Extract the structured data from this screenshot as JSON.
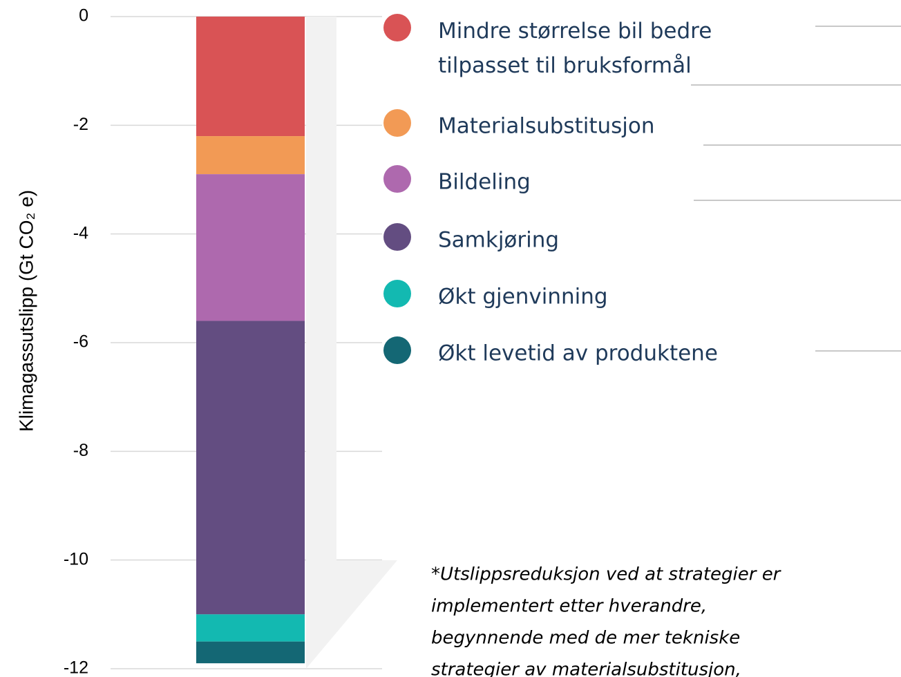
{
  "chart_data": {
    "type": "stacked_bar",
    "y_label": "Klimagassutslipp (Gt CO₂ e)",
    "ylim": [
      -12,
      0
    ],
    "yticks": [
      0,
      -2,
      -4,
      -6,
      -8,
      -10,
      -12
    ],
    "grid": true,
    "series": [
      {
        "name": "Mindre størrelse bil bedre tilpasset til bruksformål",
        "color": "#d95355",
        "values": [
          -2.2
        ]
      },
      {
        "name": "Materialsubstitusjon",
        "color": "#f29a55",
        "values": [
          -0.7
        ]
      },
      {
        "name": "Bildeling",
        "color": "#ae69ae",
        "values": [
          -2.7
        ]
      },
      {
        "name": "Samkjøring",
        "color": "#634d81",
        "values": [
          -5.4
        ]
      },
      {
        "name": "Økt gjenvinning",
        "color": "#13b9b1",
        "values": [
          -0.5
        ]
      },
      {
        "name": "Økt levetid av produktene",
        "color": "#146774",
        "values": [
          -0.4
        ]
      }
    ],
    "note_lines": [
      "*Utslippsreduksjon ved at strategier er",
      "implementert etter hverandre,",
      "begynnende med de mer tekniske",
      "strategier av materialsubstitusjon,"
    ]
  }
}
